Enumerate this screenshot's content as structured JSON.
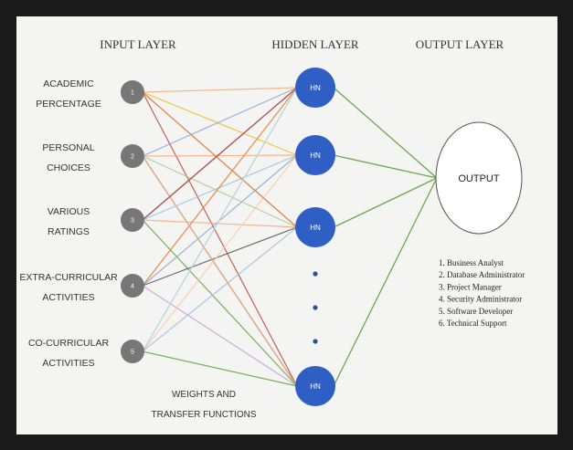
{
  "layers": {
    "input_title": "INPUT LAYER",
    "hidden_title": "HIDDEN LAYER",
    "output_title": "OUTPUT LAYER"
  },
  "inputs": [
    {
      "num": "1",
      "lines": [
        "ACADEMIC",
        "PERCENTAGE"
      ]
    },
    {
      "num": "2",
      "lines": [
        "PERSONAL",
        "CHOICES"
      ]
    },
    {
      "num": "3",
      "lines": [
        "VARIOUS",
        "RATINGS"
      ]
    },
    {
      "num": "4",
      "lines": [
        "EXTRA-CURRICULAR",
        "ACTIVITIES"
      ]
    },
    {
      "num": "5",
      "lines": [
        "CO-CURRICULAR",
        "ACTIVITIES"
      ]
    }
  ],
  "hidden": [
    {
      "label": "HN"
    },
    {
      "label": "HN"
    },
    {
      "label": "HN"
    },
    {
      "label": "HN"
    }
  ],
  "output": {
    "label": "OUTPUT"
  },
  "output_list": [
    "1.   Business Analyst",
    "2.   Database Administrator",
    "3.   Project Manager",
    "4.   Security Administrator",
    "5.   Software Developer",
    "6.   Technical Support"
  ],
  "caption": [
    "WEIGHTS AND",
    "TRANSFER FUNCTIONS"
  ],
  "colors": {
    "input_node": "#777777",
    "hidden_node": "#2f5fc4",
    "dots": "#2f4fa0",
    "output_edge": "#6aa84f"
  },
  "connections": [
    {
      "from": 0,
      "to": 0,
      "color": "#f4b183"
    },
    {
      "from": 0,
      "to": 1,
      "color": "#f0c030"
    },
    {
      "from": 0,
      "to": 2,
      "color": "#9dc3e6"
    },
    {
      "from": 0,
      "to": 3,
      "color": "#c0504d"
    },
    {
      "from": 1,
      "to": 0,
      "color": "#8eaadb"
    },
    {
      "from": 1,
      "to": 1,
      "color": "#f4b183"
    },
    {
      "from": 1,
      "to": 2,
      "color": "#a9d18e"
    },
    {
      "from": 1,
      "to": 3,
      "color": "#5a5a5a"
    },
    {
      "from": 2,
      "to": 0,
      "color": "#5a5a5a"
    },
    {
      "from": 2,
      "to": 1,
      "color": "#9dc3e6"
    },
    {
      "from": 2,
      "to": 2,
      "color": "#f4b183"
    },
    {
      "from": 2,
      "to": 3,
      "color": "#6aa84f"
    },
    {
      "from": 3,
      "to": 0,
      "color": "#ed7d31"
    },
    {
      "from": 3,
      "to": 1,
      "color": "#8faadc"
    },
    {
      "from": 3,
      "to": 2,
      "color": "#5a5a5a"
    },
    {
      "from": 3,
      "to": 3,
      "color": "#c9a0dc"
    },
    {
      "from": 4,
      "to": 0,
      "color": "#a9d18e"
    },
    {
      "from": 4,
      "to": 1,
      "color": "#f8cbad"
    },
    {
      "from": 4,
      "to": 2,
      "color": "#9dc3e6"
    },
    {
      "from": 4,
      "to": 3,
      "color": "#6aa84f"
    },
    {
      "from": 0,
      "to": 2,
      "color": "#ed7d31"
    },
    {
      "from": 1,
      "to": 3,
      "color": "#f4b183"
    },
    {
      "from": 4,
      "to": 0,
      "color": "#bdd7ee"
    },
    {
      "from": 2,
      "to": 0,
      "color": "#c0504d"
    }
  ]
}
